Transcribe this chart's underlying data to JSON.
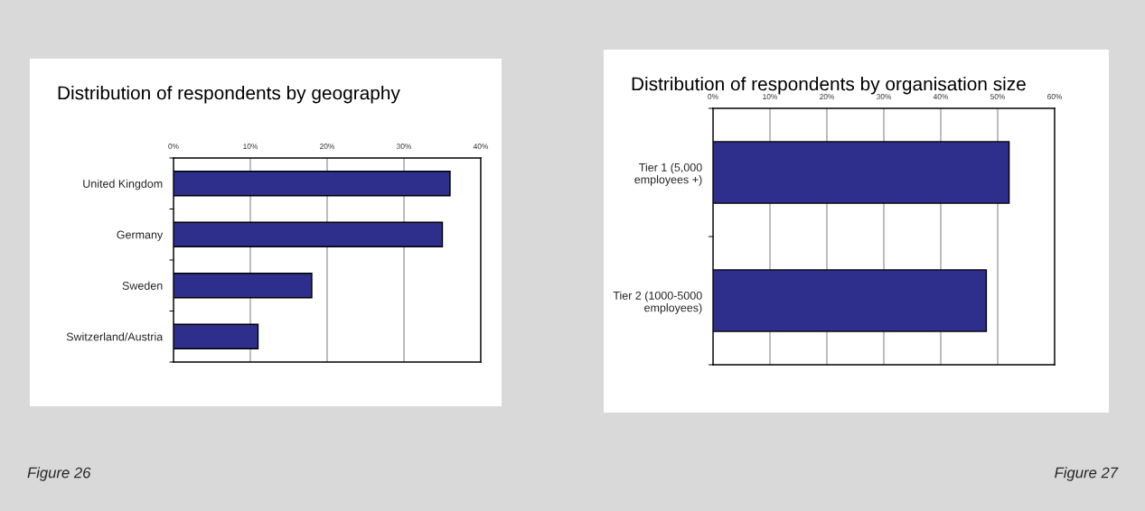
{
  "chart_data": [
    {
      "type": "bar",
      "orientation": "horizontal",
      "title": "Distribution of respondents by geography",
      "categories": [
        "United Kingdom",
        "Germany",
        "Sweden",
        "Switzerland/Austria"
      ],
      "values": [
        36,
        35,
        18,
        11
      ],
      "color": "#2e2e8c",
      "xlim": [
        0,
        40
      ],
      "xticks": [
        {
          "value": 0,
          "label": "0%"
        },
        {
          "value": 10,
          "label": "10%"
        },
        {
          "value": 20,
          "label": "20%"
        },
        {
          "value": 30,
          "label": "30%"
        },
        {
          "value": 40,
          "label": "40%"
        }
      ],
      "grid": "x",
      "annotations": [
        "Figure 26"
      ]
    },
    {
      "type": "bar",
      "orientation": "horizontal",
      "title": "Distribution of respondents by organisation size",
      "categories": [
        "Tier 1 (5,000 employees +)",
        "Tier 2 (1000-5000 employees)"
      ],
      "values": [
        52,
        48
      ],
      "color": "#2e2e8c",
      "xlim": [
        0,
        60
      ],
      "xticks": [
        {
          "value": 0,
          "label": "0%"
        },
        {
          "value": 10,
          "label": "10%"
        },
        {
          "value": 20,
          "label": "20%"
        },
        {
          "value": 30,
          "label": "30%"
        },
        {
          "value": 40,
          "label": "40%"
        },
        {
          "value": 50,
          "label": "50%"
        },
        {
          "value": 60,
          "label": "60%"
        }
      ],
      "grid": "x",
      "annotations": [
        "Figure 27"
      ]
    }
  ]
}
